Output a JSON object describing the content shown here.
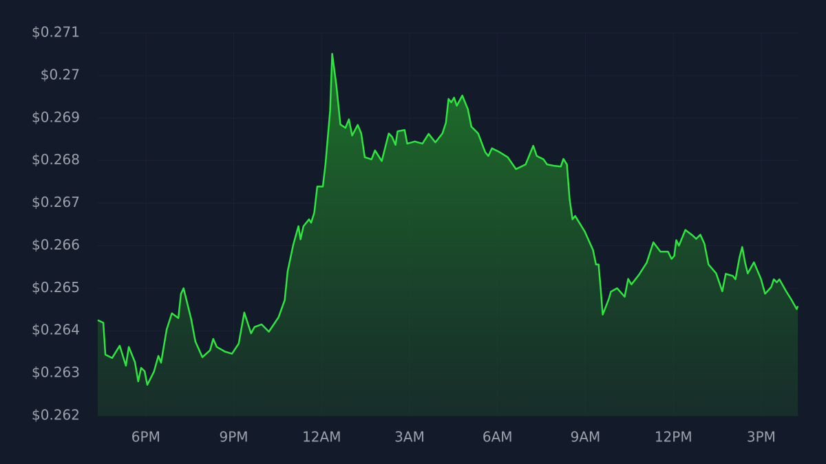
{
  "chart_data": {
    "type": "area",
    "color": "#2ee63f",
    "grid": true,
    "x": [
      16.36,
      16.55,
      16.62,
      16.85,
      17.11,
      17.32,
      17.42,
      17.63,
      17.74,
      17.84,
      17.96,
      18.05,
      18.28,
      18.43,
      18.52,
      18.71,
      18.89,
      19.11,
      19.2,
      19.29,
      19.55,
      19.69,
      19.93,
      20.19,
      20.3,
      20.42,
      20.7,
      20.94,
      21.17,
      21.36,
      21.59,
      21.71,
      21.95,
      22.2,
      22.53,
      22.74,
      22.84,
      23.03,
      23.21,
      23.28,
      23.38,
      23.57,
      23.64,
      23.75,
      23.85,
      24.04,
      24.13,
      24.29,
      24.36,
      24.5,
      24.64,
      24.81,
      24.93,
      25.04,
      25.23,
      25.35,
      25.47,
      25.7,
      25.82,
      26.05,
      26.29,
      26.4,
      26.52,
      26.59,
      26.83,
      26.92,
      27.18,
      27.44,
      27.65,
      27.88,
      28.12,
      28.24,
      28.33,
      28.42,
      28.52,
      28.61,
      28.8,
      28.99,
      29.11,
      29.34,
      29.58,
      29.69,
      29.81,
      30.07,
      30.35,
      30.63,
      30.96,
      31.22,
      31.34,
      31.57,
      31.69,
      31.92,
      32.16,
      32.25,
      32.37,
      32.46,
      32.56,
      32.65,
      32.98,
      33.26,
      33.36,
      33.45,
      33.52,
      33.59,
      33.8,
      33.87,
      34.08,
      34.34,
      34.46,
      34.57,
      34.83,
      35.09,
      35.32,
      35.56,
      35.82,
      35.94,
      36.03,
      36.1,
      36.19,
      36.41,
      36.66,
      36.78,
      36.92,
      37.06,
      37.2,
      37.46,
      37.67,
      37.79,
      38.03,
      38.12,
      38.26,
      38.35,
      38.45,
      38.54,
      38.75,
      38.99,
      39.13,
      39.34,
      39.43,
      39.53,
      39.62,
      39.83,
      40.02,
      40.21,
      40.25
    ],
    "values": [
      0.26425,
      0.26419,
      0.26344,
      0.26336,
      0.26365,
      0.26318,
      0.26362,
      0.26326,
      0.26281,
      0.26313,
      0.26305,
      0.26273,
      0.26304,
      0.26341,
      0.26325,
      0.26403,
      0.26441,
      0.2643,
      0.26487,
      0.265,
      0.26427,
      0.26375,
      0.26338,
      0.26354,
      0.26381,
      0.26362,
      0.26351,
      0.26346,
      0.2637,
      0.26443,
      0.26394,
      0.26409,
      0.26415,
      0.26398,
      0.26432,
      0.26472,
      0.2654,
      0.26602,
      0.26646,
      0.26615,
      0.26646,
      0.26662,
      0.26654,
      0.26678,
      0.26739,
      0.26739,
      0.26791,
      0.26918,
      0.27051,
      0.26978,
      0.26885,
      0.26877,
      0.26897,
      0.26859,
      0.26884,
      0.26864,
      0.26808,
      0.26803,
      0.26824,
      0.26799,
      0.26864,
      0.26856,
      0.26837,
      0.26869,
      0.26872,
      0.2684,
      0.26845,
      0.2684,
      0.26863,
      0.26843,
      0.26864,
      0.26889,
      0.26945,
      0.26937,
      0.26948,
      0.26929,
      0.26953,
      0.26921,
      0.2688,
      0.26864,
      0.2682,
      0.26811,
      0.26829,
      0.2682,
      0.26808,
      0.2678,
      0.26791,
      0.26835,
      0.26811,
      0.26803,
      0.26791,
      0.26788,
      0.26786,
      0.26804,
      0.26791,
      0.2671,
      0.26662,
      0.2667,
      0.26633,
      0.2659,
      0.26556,
      0.26556,
      0.265,
      0.26438,
      0.26475,
      0.26492,
      0.265,
      0.2648,
      0.26522,
      0.26509,
      0.26532,
      0.2656,
      0.26608,
      0.26586,
      0.26586,
      0.26569,
      0.26576,
      0.26613,
      0.266,
      0.26637,
      0.26624,
      0.26616,
      0.26626,
      0.26605,
      0.26556,
      0.26535,
      0.26493,
      0.26534,
      0.26529,
      0.26521,
      0.26573,
      0.26597,
      0.2656,
      0.26535,
      0.26561,
      0.26522,
      0.26487,
      0.26503,
      0.26521,
      0.26514,
      0.26521,
      0.26495,
      0.26474,
      0.26451,
      0.26458
    ],
    "xlim": [
      16.36,
      40.27
    ],
    "xticks": [
      {
        "value": 18,
        "label": "6PM"
      },
      {
        "value": 21,
        "label": "9PM"
      },
      {
        "value": 24,
        "label": "12AM"
      },
      {
        "value": 27,
        "label": "3AM"
      },
      {
        "value": 30,
        "label": "6AM"
      },
      {
        "value": 33,
        "label": "9AM"
      },
      {
        "value": 36,
        "label": "12PM"
      },
      {
        "value": 39,
        "label": "3PM"
      }
    ],
    "ylim": [
      0.262,
      0.271
    ],
    "yticks": [
      {
        "value": 0.262,
        "label": "$0.262"
      },
      {
        "value": 0.263,
        "label": "$0.263"
      },
      {
        "value": 0.264,
        "label": "$0.264"
      },
      {
        "value": 0.265,
        "label": "$0.265"
      },
      {
        "value": 0.266,
        "label": "$0.266"
      },
      {
        "value": 0.267,
        "label": "$0.267"
      },
      {
        "value": 0.268,
        "label": "$0.268"
      },
      {
        "value": 0.269,
        "label": "$0.269"
      },
      {
        "value": 0.27,
        "label": "$0.27"
      },
      {
        "value": 0.271,
        "label": "$0.271"
      }
    ]
  }
}
